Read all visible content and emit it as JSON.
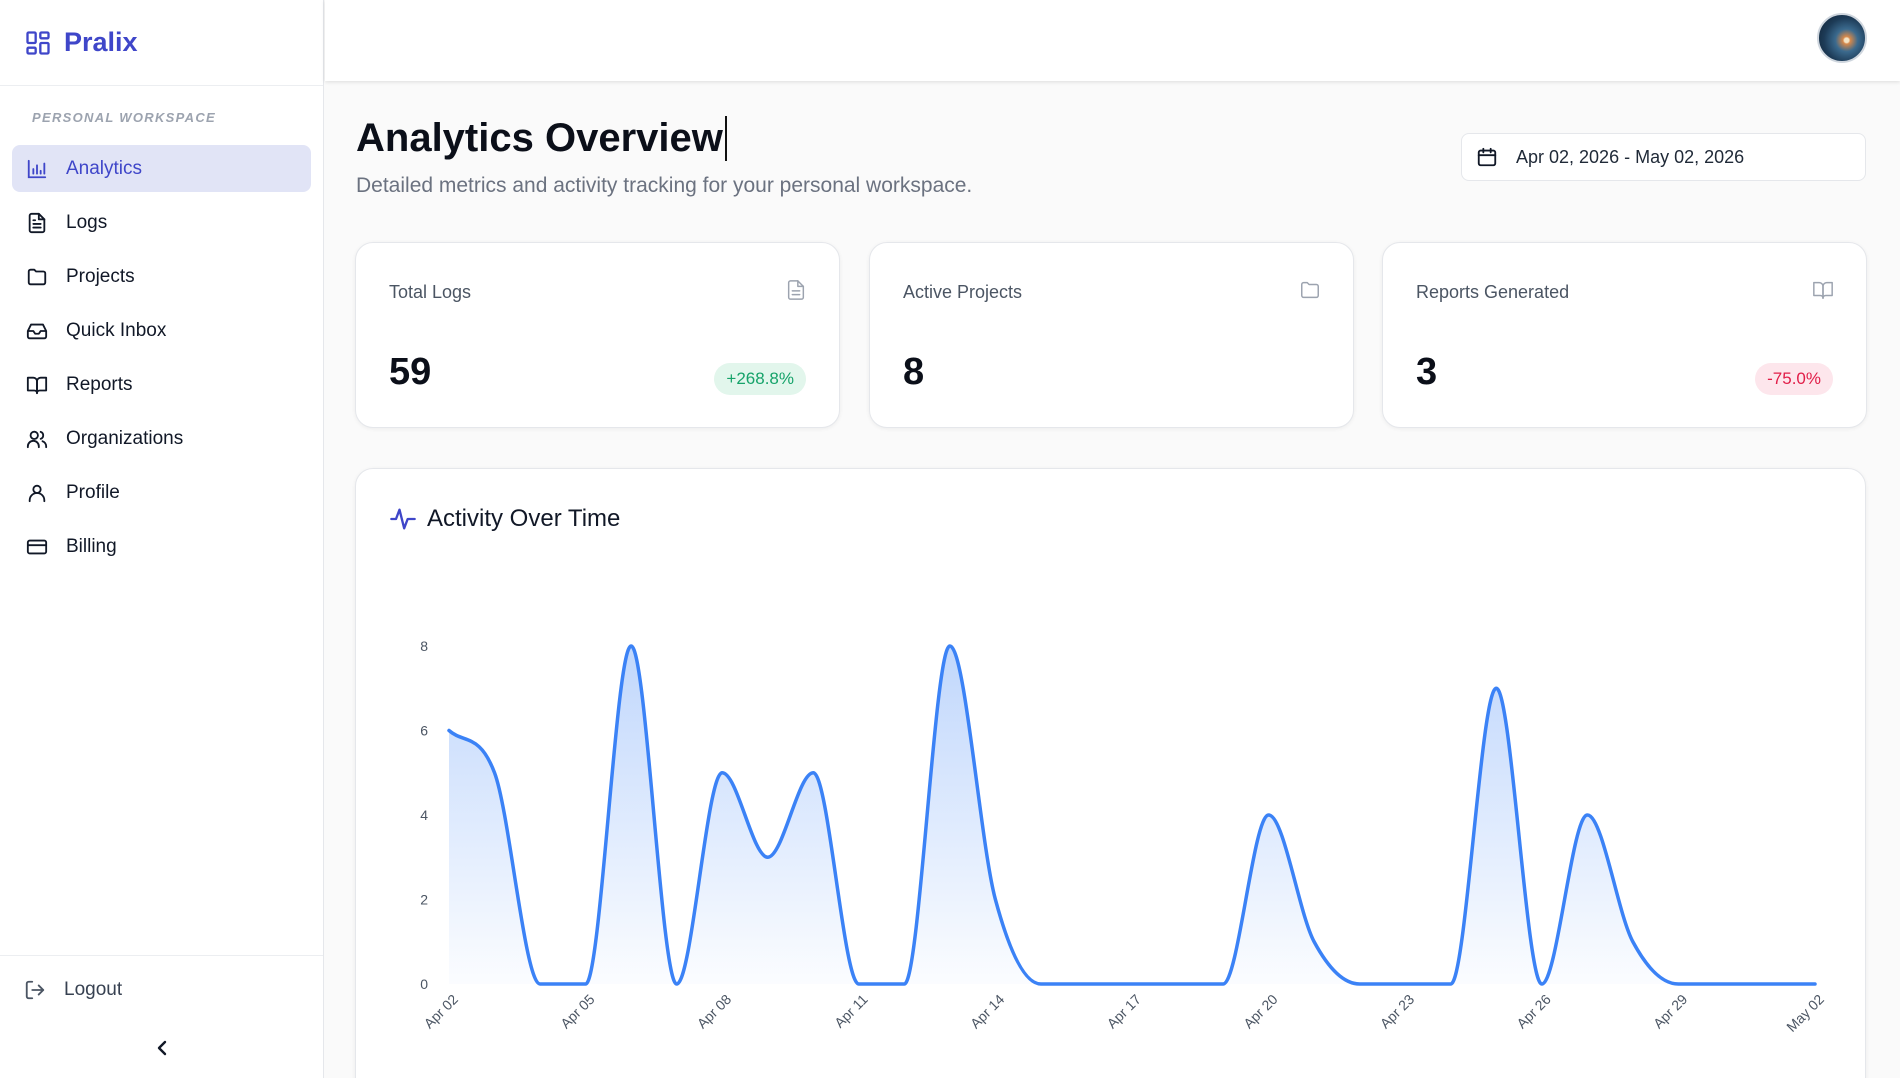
{
  "brand": {
    "name": "Pralix"
  },
  "sidebar": {
    "section_label": "Personal Workspace",
    "items": [
      {
        "label": "Analytics",
        "icon": "bar-chart-icon",
        "active": true
      },
      {
        "label": "Logs",
        "icon": "file-text-icon"
      },
      {
        "label": "Projects",
        "icon": "folder-icon"
      },
      {
        "label": "Quick Inbox",
        "icon": "inbox-icon"
      },
      {
        "label": "Reports",
        "icon": "book-open-icon"
      },
      {
        "label": "Organizations",
        "icon": "users-icon"
      },
      {
        "label": "Profile",
        "icon": "user-icon"
      },
      {
        "label": "Billing",
        "icon": "credit-card-icon"
      }
    ],
    "logout_label": "Logout"
  },
  "header": {
    "title": "Analytics Overview",
    "subtitle": "Detailed metrics and activity tracking for your personal workspace.",
    "date_range": "Apr 02, 2026 - May 02, 2026"
  },
  "stats": [
    {
      "label": "Total Logs",
      "value": "59",
      "change": "+268.8%",
      "trend": "up",
      "icon": "file-text-icon"
    },
    {
      "label": "Active Projects",
      "value": "8",
      "icon": "folder-icon"
    },
    {
      "label": "Reports Generated",
      "value": "3",
      "change": "-75.0%",
      "trend": "down",
      "icon": "book-open-icon"
    }
  ],
  "colors": {
    "accent": "#3f46c9",
    "line": "#3b82f6",
    "up": "#16a36a",
    "down": "#e11d48"
  },
  "chart_data": {
    "type": "area",
    "title": "Activity Over Time",
    "x": [
      "Apr 02",
      "Apr 03",
      "Apr 04",
      "Apr 05",
      "Apr 06",
      "Apr 07",
      "Apr 08",
      "Apr 09",
      "Apr 10",
      "Apr 11",
      "Apr 12",
      "Apr 13",
      "Apr 14",
      "Apr 15",
      "Apr 16",
      "Apr 17",
      "Apr 18",
      "Apr 19",
      "Apr 20",
      "Apr 21",
      "Apr 22",
      "Apr 23",
      "Apr 24",
      "Apr 25",
      "Apr 26",
      "Apr 27",
      "Apr 28",
      "Apr 29",
      "Apr 30",
      "May 01",
      "May 02"
    ],
    "x_tick_labels": [
      "Apr 02",
      "Apr 05",
      "Apr 08",
      "Apr 11",
      "Apr 14",
      "Apr 17",
      "Apr 20",
      "Apr 23",
      "Apr 26",
      "Apr 29",
      "May 02"
    ],
    "values": [
      6,
      5,
      0,
      0,
      8,
      0,
      5,
      3,
      5,
      0,
      0,
      8,
      2,
      0,
      0,
      0,
      0,
      0,
      4,
      1,
      0,
      0,
      0,
      7,
      0,
      4,
      1,
      0,
      0,
      0,
      0
    ],
    "yticks": [
      0,
      2,
      4,
      6,
      8
    ],
    "ylim": [
      0,
      8
    ],
    "grid": false
  }
}
